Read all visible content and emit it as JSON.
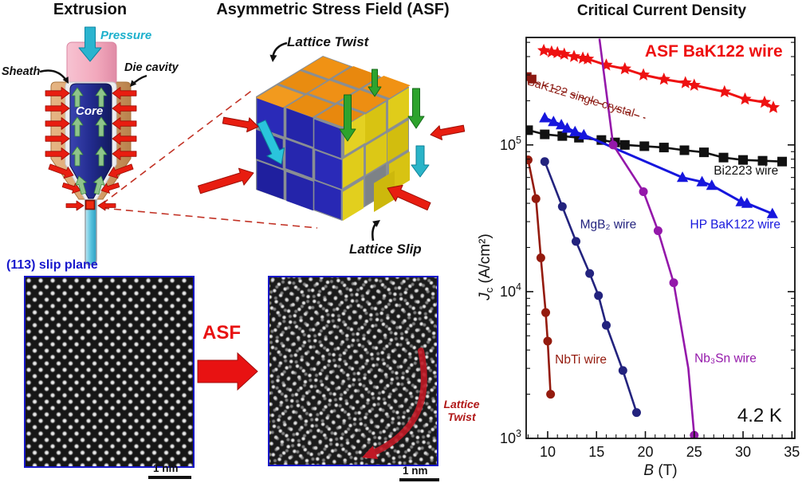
{
  "colors": {
    "accent_red": "#e81212",
    "star_red": "#ee1111",
    "dark_red": "#8c1a12",
    "nbti_red": "#941b0e",
    "annotation_red": "#b01818",
    "black": "#111111",
    "hp_blue": "#1616dd",
    "mgb2_navy": "#23237e",
    "nb3sn_purple": "#9418aa",
    "cyan": "#1cb0cc",
    "green_dark": "#2da32d",
    "green_light": "#8fc48b",
    "orange_face": "#ec8d14",
    "blue_face": "#2525b0",
    "yellow_face": "#d8c415",
    "die_tan": "#d9a26e",
    "plunger_pink": "#f2a8bc",
    "core_navy": "#222b8e",
    "tem_border_blue": "#1717c8",
    "caption_blue": "#1818cc"
  },
  "extrusion": {
    "title": "Extrusion",
    "pressure": "Pressure",
    "sheath": "Sheath",
    "die_cavity": "Die cavity",
    "core": "Core"
  },
  "asf_panel": {
    "title": "Asymmetric Stress Field (ASF)",
    "lattice_twist": "Lattice Twist",
    "lattice_slip": "Lattice Slip"
  },
  "tem_before": {
    "caption": "(113) slip plane",
    "scale_bar": "1 nm"
  },
  "tem_after": {
    "annotation": "Lattice Twist",
    "scale_bar": "1 nm"
  },
  "asf_arrow_label": "ASF",
  "chart_data": {
    "type": "line",
    "title": "Critical Current Density",
    "xlabel": {
      "sym": "B",
      "rest": " (T)"
    },
    "ylabel": {
      "sym": "J",
      "sub": "c",
      "rest": " (A/cm²)"
    },
    "xlim": [
      7.8,
      35.3
    ],
    "ylim": [
      1000,
      540000
    ],
    "y_scale": "log",
    "x_ticks": [
      10,
      15,
      20,
      25,
      30,
      35
    ],
    "y_ticks": [
      {
        "value": 1000,
        "exp": "3"
      },
      {
        "value": 10000,
        "exp": "4"
      },
      {
        "value": 100000,
        "exp": "5"
      }
    ],
    "grid": false,
    "legend_position": "inline-annotations",
    "temperature_label": "4.2 K",
    "series": [
      {
        "name": "ASF BaK122 wire",
        "color": "#ee1111",
        "marker": "star",
        "marker_size": 8.5,
        "line_width": 3,
        "points": [
          [
            9.6,
            440000
          ],
          [
            10.4,
            430000
          ],
          [
            11,
            425000
          ],
          [
            11.7,
            415000
          ],
          [
            12.7,
            400000
          ],
          [
            13.6,
            390000
          ],
          [
            14.1,
            385000
          ],
          [
            16,
            350000
          ],
          [
            17.9,
            330000
          ],
          [
            19.8,
            300000
          ],
          [
            21.9,
            280000
          ],
          [
            24.1,
            265000
          ],
          [
            25,
            255000
          ],
          [
            28.1,
            230000
          ],
          [
            30.2,
            205000
          ],
          [
            32.2,
            195000
          ],
          [
            33.1,
            180000
          ]
        ]
      },
      {
        "name": "BaK122 single crystal",
        "color": "#8c1a12",
        "marker": "square",
        "marker_size": 5.5,
        "line_width": 2,
        "points": [
          [
            7.9,
            292000
          ],
          [
            8.4,
            281000
          ]
        ]
      },
      {
        "name": "BaK122 single crystal trend",
        "color": "#8c1a12",
        "marker": "none",
        "line_width": 1.4,
        "dash": "7,5",
        "points": [
          [
            8.6,
            268000
          ],
          [
            20,
            152000
          ]
        ]
      },
      {
        "name": "Bi2223 wire",
        "color": "#111111",
        "marker": "square",
        "marker_size": 6,
        "line_width": 2.6,
        "points": [
          [
            8,
            126000
          ],
          [
            9.7,
            118000
          ],
          [
            11.5,
            115000
          ],
          [
            13.2,
            112000
          ],
          [
            15.5,
            108000
          ],
          [
            16.9,
            104000
          ],
          [
            17.9,
            100000
          ],
          [
            19.9,
            98000
          ],
          [
            21.9,
            96000
          ],
          [
            24,
            92000
          ],
          [
            26,
            89000
          ],
          [
            28,
            82000
          ],
          [
            30,
            79000
          ],
          [
            32,
            78000
          ],
          [
            34,
            77000
          ]
        ]
      },
      {
        "name": "HP BaK122 wire",
        "color": "#1616dd",
        "marker": "triangle",
        "marker_size": 7.5,
        "line_width": 3,
        "points": [
          [
            9.7,
            153000
          ],
          [
            10.6,
            144000
          ],
          [
            11.4,
            137000
          ],
          [
            12,
            130000
          ],
          [
            12.8,
            123000
          ],
          [
            13.7,
            117000
          ],
          [
            23.8,
            60000
          ],
          [
            25.8,
            56000
          ],
          [
            26.8,
            53000
          ],
          [
            29.8,
            41000
          ],
          [
            30.4,
            40000
          ],
          [
            33,
            34000
          ]
        ]
      },
      {
        "name": "MgB₂ wire",
        "color": "#23237e",
        "marker": "circle",
        "marker_size": 5.5,
        "line_width": 2.6,
        "points": [
          [
            9.7,
            77000
          ],
          [
            11.5,
            38000
          ],
          [
            12.9,
            22000
          ],
          [
            14.3,
            13300
          ],
          [
            15.2,
            9400
          ],
          [
            16,
            5900
          ],
          [
            17.7,
            2900
          ],
          [
            19.1,
            1500
          ]
        ]
      },
      {
        "name": "Nb₃Sn wire",
        "color": "#9418aa",
        "marker": "circle",
        "marker_size": 5.5,
        "line_width": 2.6,
        "points": [
          [
            15.3,
            530000,
            0
          ],
          [
            16.7,
            100000
          ],
          [
            19.8,
            48000
          ],
          [
            21.3,
            26000
          ],
          [
            22.9,
            11500
          ],
          [
            24.4,
            3000,
            0
          ],
          [
            25,
            1050
          ]
        ]
      },
      {
        "name": "NbTi wire",
        "color": "#941b0e",
        "marker": "circle",
        "marker_size": 5.5,
        "line_width": 2.6,
        "points": [
          [
            7.9,
            82000,
            0
          ],
          [
            8,
            79000
          ],
          [
            8.8,
            43000
          ],
          [
            9.3,
            17000
          ],
          [
            9.8,
            7200
          ],
          [
            10,
            4600
          ],
          [
            10.3,
            2000
          ]
        ]
      }
    ],
    "annotations": [
      {
        "text": "ASF BaK122 wire",
        "B": 27,
        "Jc": 400000,
        "color": "#ee1111",
        "size": 21,
        "bold": true
      },
      {
        "text": "BaK122 single crystal",
        "B": 13.3,
        "Jc": 200000,
        "color": "#8c1a12",
        "size": 14.5,
        "rotate": 17
      },
      {
        "text": "Bi2223 wire",
        "B": 30.3,
        "Jc": 63000,
        "color": "#111111",
        "size": 15.5
      },
      {
        "text": "HP BaK122 wire",
        "B": 29.2,
        "Jc": 27000,
        "color": "#1616dd",
        "size": 15.5
      },
      {
        "text": "MgB₂ wire",
        "B": 16.2,
        "Jc": 27000,
        "color": "#23237e",
        "size": 15.5
      },
      {
        "text": "NbTi wire",
        "B": 13.4,
        "Jc": 3250,
        "color": "#941b0e",
        "size": 15.5
      },
      {
        "text": "Nb₃Sn wire",
        "B": 28.2,
        "Jc": 3300,
        "color": "#9418aa",
        "size": 15.5
      },
      {
        "text": "4.2 K",
        "B": 31.7,
        "Jc": 1300,
        "color": "#111111",
        "size": 24
      }
    ]
  }
}
